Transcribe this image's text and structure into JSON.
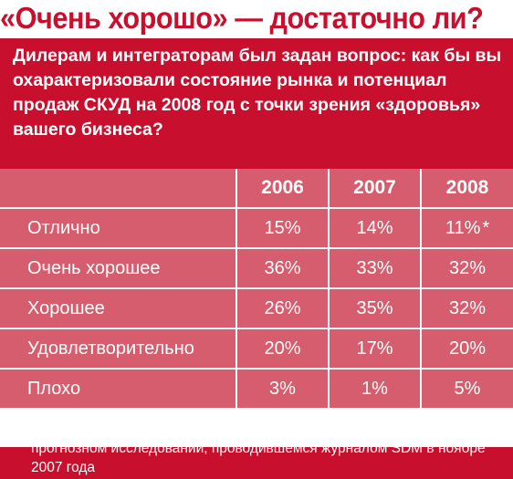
{
  "headline": "«Очень хорошо» — достаточно ли?",
  "question": "Дилерам и интеграторам был задан вопрос: как бы вы охарактеризовали состояние рынка и потенциал продаж СКУД на 2008 год с точки зрения «здоровья» вашего бизнеса?",
  "table": {
    "columns": [
      "",
      "2006",
      "2007",
      "2008"
    ],
    "rows": [
      {
        "label": "Отлично",
        "v2006": "15%",
        "v2007": "14%",
        "v2008": "11%",
        "v2008_mark": "*"
      },
      {
        "label": "Очень хорошее",
        "v2006": "36%",
        "v2007": "33%",
        "v2008": "32%"
      },
      {
        "label": "Хорошее",
        "v2006": "26%",
        "v2007": "35%",
        "v2008": "32%"
      },
      {
        "label": "Удовлетворительно",
        "v2006": "20%",
        "v2007": "17%",
        "v2008": "20%"
      },
      {
        "label": "Плохо",
        "v2006": "3%",
        "v2007": "1%",
        "v2008": "5%"
      }
    ]
  },
  "footnote": "* процент от общего количества респондентов, принявших участие в прогнозном исследовании, проводившемся журналом SDM в ноябре 2007 года",
  "colors": {
    "brand_red": "#c8102e",
    "cell_pink": "#d65d6e",
    "text_white": "#ffffff"
  }
}
